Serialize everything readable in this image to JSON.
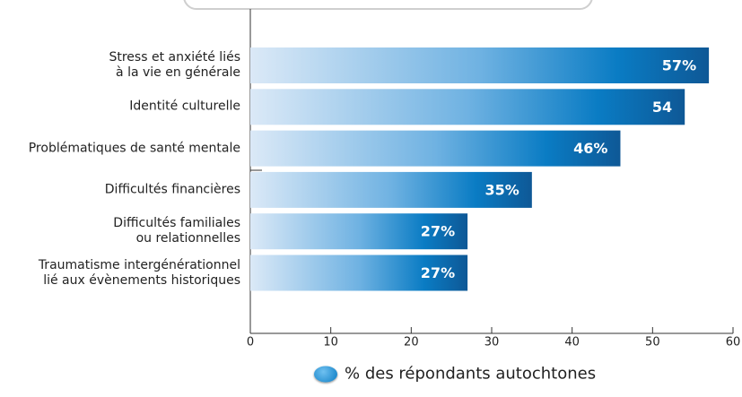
{
  "chart_data": {
    "type": "bar",
    "orientation": "horizontal",
    "categories": [
      "Stress et anxiété liés\nà la vie en générale",
      "Identité culturelle",
      "Problématiques de santé mentale",
      "Difficultés financières",
      "Difficultés familiales\nou relationnelles",
      "Traumatisme intergénérationnel\nlié aux évènements historiques"
    ],
    "series": [
      {
        "name": "% des répondants autochtones",
        "color": "#0a7cc4",
        "values": [
          57,
          54,
          46,
          35,
          27,
          27
        ],
        "value_labels": [
          "57%",
          "54",
          "46%",
          "35%",
          "27%",
          "27%"
        ]
      }
    ],
    "xlim": [
      0,
      60
    ],
    "xticks": [
      0,
      10,
      20,
      30,
      40,
      50,
      60
    ],
    "grid": false
  }
}
